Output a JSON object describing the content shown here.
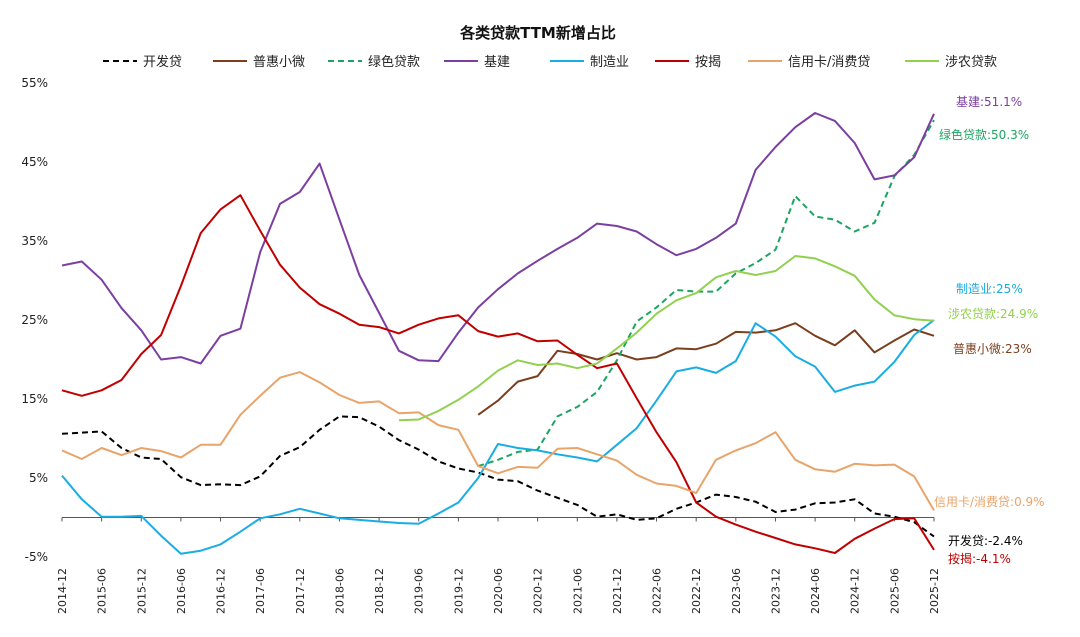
{
  "chart_data": {
    "type": "line",
    "title": "各类贷款TTM新增占比",
    "xlabel": "",
    "ylabel": "",
    "ylim": [
      -5,
      55
    ],
    "yticks": [
      -5,
      5,
      15,
      25,
      35,
      45,
      55
    ],
    "ytick_labels": [
      "-5%",
      "5%",
      "15%",
      "25%",
      "35%",
      "45%",
      "55%"
    ],
    "x_start": "2014-12",
    "x_end": "2025-12",
    "xticks": [
      "2014-12",
      "2015-06",
      "2015-12",
      "2016-06",
      "2016-12",
      "2017-06",
      "2017-12",
      "2018-06",
      "2018-12",
      "2019-06",
      "2019-12",
      "2020-06",
      "2020-12",
      "2021-06",
      "2021-12",
      "2022-06",
      "2022-12",
      "2023-06",
      "2023-12",
      "2024-06",
      "2024-12",
      "2025-06",
      "2025-12"
    ],
    "grid": false,
    "legend_position": "top",
    "series": [
      {
        "name": "开发贷",
        "color": "#000000",
        "dash": true,
        "x": [
          "2014-12",
          "2015-06",
          "2015-09",
          "2015-12",
          "2016-03",
          "2016-06",
          "2016-09",
          "2016-12",
          "2017-03",
          "2017-06",
          "2017-09",
          "2017-12",
          "2018-03",
          "2018-06",
          "2018-09",
          "2018-12",
          "2019-03",
          "2019-06",
          "2019-09",
          "2019-12",
          "2020-03",
          "2020-06",
          "2020-09",
          "2020-12",
          "2021-03",
          "2021-06",
          "2021-09",
          "2021-12",
          "2022-03",
          "2022-06",
          "2022-09",
          "2022-12",
          "2023-03",
          "2023-06",
          "2023-09",
          "2023-12",
          "2024-03",
          "2024-06",
          "2024-09",
          "2024-12",
          "2025-03",
          "2025-06",
          "2025-09",
          "2025-12"
        ],
        "values": [
          10.6,
          10.9,
          8.8,
          7.6,
          7.4,
          5.1,
          4.1,
          4.2,
          4.1,
          5.2,
          7.8,
          8.9,
          11.1,
          12.8,
          12.7,
          11.5,
          9.8,
          8.6,
          7.1,
          6.2,
          5.7,
          4.8,
          4.6,
          3.4,
          2.5,
          1.6,
          0.1,
          0.4,
          -0.3,
          -0.1,
          1.1,
          1.9,
          2.9,
          2.6,
          2.0,
          0.7,
          1.0,
          1.8,
          1.9,
          2.3,
          0.5,
          0.1,
          -0.6,
          -2.4
        ],
        "end_label": "开发贷:-2.4%"
      },
      {
        "name": "普惠小微",
        "color": "#7B3F1E",
        "dash": false,
        "x": [
          "2020-03",
          "2020-06",
          "2020-09",
          "2020-12",
          "2021-03",
          "2021-06",
          "2021-09",
          "2021-12",
          "2022-03",
          "2022-06",
          "2022-09",
          "2022-12",
          "2023-03",
          "2023-06",
          "2023-09",
          "2023-12",
          "2024-03",
          "2024-06",
          "2024-09",
          "2024-12",
          "2025-03",
          "2025-06",
          "2025-09",
          "2025-12"
        ],
        "values": [
          13.0,
          14.8,
          17.2,
          17.9,
          21.1,
          20.7,
          20.0,
          20.8,
          20.0,
          20.3,
          21.4,
          21.3,
          22.0,
          23.5,
          23.4,
          23.7,
          24.6,
          23.0,
          21.8,
          23.7,
          20.9,
          22.4,
          23.8,
          23.0
        ],
        "end_label": "普惠小微:23%"
      },
      {
        "name": "绿色贷款",
        "color": "#1DA462",
        "dash": true,
        "x": [
          "2020-03",
          "2020-06",
          "2020-09",
          "2020-12",
          "2021-03",
          "2021-06",
          "2021-09",
          "2021-12",
          "2022-03",
          "2022-06",
          "2022-09",
          "2022-12",
          "2023-03",
          "2023-06",
          "2023-09",
          "2023-12",
          "2024-03",
          "2024-06",
          "2024-09",
          "2024-12",
          "2025-03",
          "2025-06",
          "2025-09",
          "2025-12"
        ],
        "values": [
          6.5,
          7.3,
          8.3,
          8.6,
          12.8,
          14.0,
          15.9,
          19.9,
          24.8,
          26.6,
          28.8,
          28.6,
          28.6,
          30.9,
          32.2,
          33.9,
          40.7,
          38.1,
          37.7,
          36.2,
          37.3,
          43.2,
          45.9,
          50.3
        ],
        "end_label": "绿色贷款:50.3%"
      },
      {
        "name": "基建",
        "color": "#7B3FA1",
        "dash": false,
        "x": [
          "2014-12",
          "2015-03",
          "2015-06",
          "2015-09",
          "2015-12",
          "2016-03",
          "2016-06",
          "2016-09",
          "2016-12",
          "2017-03",
          "2017-06",
          "2017-09",
          "2017-12",
          "2018-03",
          "2018-06",
          "2018-09",
          "2018-12",
          "2019-03",
          "2019-06",
          "2019-09",
          "2019-12",
          "2020-03",
          "2020-06",
          "2020-09",
          "2020-12",
          "2021-03",
          "2021-06",
          "2021-09",
          "2021-12",
          "2022-03",
          "2022-06",
          "2022-09",
          "2022-12",
          "2023-03",
          "2023-06",
          "2023-09",
          "2023-12",
          "2024-03",
          "2024-06",
          "2024-09",
          "2024-12",
          "2025-03",
          "2025-06",
          "2025-09",
          "2025-12"
        ],
        "values": [
          31.9,
          32.4,
          30.1,
          26.5,
          23.7,
          20.0,
          20.3,
          19.5,
          23.0,
          23.9,
          33.6,
          39.7,
          41.2,
          44.8,
          37.7,
          30.7,
          25.9,
          21.1,
          19.9,
          19.8,
          23.4,
          26.6,
          28.9,
          30.9,
          32.5,
          34.0,
          35.4,
          37.2,
          36.9,
          36.2,
          34.6,
          33.2,
          34.0,
          35.4,
          37.2,
          44.0,
          46.9,
          49.4,
          51.2,
          50.2,
          47.4,
          42.8,
          43.3,
          45.6,
          51.1
        ],
        "end_label": "基建:51.1%"
      },
      {
        "name": "制造业",
        "color": "#1AADE3",
        "dash": false,
        "x": [
          "2014-12",
          "2015-03",
          "2015-06",
          "2015-09",
          "2015-12",
          "2016-03",
          "2016-06",
          "2016-09",
          "2016-12",
          "2017-03",
          "2017-06",
          "2017-09",
          "2017-12",
          "2018-03",
          "2018-06",
          "2018-09",
          "2018-12",
          "2019-03",
          "2019-06",
          "2019-09",
          "2019-12",
          "2020-03",
          "2020-06",
          "2020-09",
          "2020-12",
          "2021-03",
          "2021-06",
          "2021-09",
          "2021-12",
          "2022-03",
          "2022-06",
          "2022-09",
          "2022-12",
          "2023-03",
          "2023-06",
          "2023-09",
          "2023-12",
          "2024-03",
          "2024-06",
          "2024-09",
          "2024-12",
          "2025-03",
          "2025-06",
          "2025-09",
          "2025-12"
        ],
        "values": [
          5.3,
          2.3,
          0.1,
          0.1,
          0.2,
          -2.3,
          -4.6,
          -4.2,
          -3.4,
          -1.8,
          -0.1,
          0.4,
          1.1,
          0.5,
          -0.1,
          -0.3,
          -0.5,
          -0.7,
          -0.8,
          0.5,
          1.9,
          5.0,
          9.3,
          8.8,
          8.5,
          8.0,
          7.6,
          7.1,
          9.2,
          11.3,
          14.8,
          18.5,
          19.0,
          18.3,
          19.8,
          24.6,
          22.9,
          20.4,
          19.1,
          15.9,
          16.7,
          17.2,
          19.7,
          23.1,
          25.0
        ],
        "end_label": "制造业:25%"
      },
      {
        "name": "按揭",
        "color": "#C00000",
        "dash": false,
        "x": [
          "2014-12",
          "2015-03",
          "2015-06",
          "2015-09",
          "2015-12",
          "2016-03",
          "2016-06",
          "2016-09",
          "2016-12",
          "2017-03",
          "2017-06",
          "2017-09",
          "2017-12",
          "2018-03",
          "2018-06",
          "2018-09",
          "2018-12",
          "2019-03",
          "2019-06",
          "2019-09",
          "2019-12",
          "2020-03",
          "2020-06",
          "2020-09",
          "2020-12",
          "2021-03",
          "2021-06",
          "2021-09",
          "2021-12",
          "2022-03",
          "2022-06",
          "2022-09",
          "2022-12",
          "2023-03",
          "2023-06",
          "2023-09",
          "2023-12",
          "2024-03",
          "2024-06",
          "2024-09",
          "2024-12",
          "2025-03",
          "2025-06",
          "2025-09",
          "2025-12"
        ],
        "values": [
          16.1,
          15.4,
          16.1,
          17.4,
          20.7,
          23.1,
          29.3,
          36.0,
          39.0,
          40.8,
          36.3,
          32.0,
          29.1,
          27.0,
          25.8,
          24.4,
          24.1,
          23.3,
          24.4,
          25.2,
          25.6,
          23.6,
          22.9,
          23.3,
          22.3,
          22.4,
          20.6,
          18.9,
          19.5,
          15.1,
          10.8,
          7.0,
          1.9,
          0.1,
          -0.9,
          -1.8,
          -2.6,
          -3.4,
          -3.9,
          -4.5,
          -2.7,
          -1.4,
          -0.2,
          -0.1,
          -4.1
        ],
        "end_label": "按揭:-4.1%"
      },
      {
        "name": "信用卡/消费贷",
        "color": "#E8A46A",
        "dash": false,
        "x": [
          "2014-12",
          "2015-03",
          "2015-06",
          "2015-09",
          "2015-12",
          "2016-03",
          "2016-06",
          "2016-09",
          "2016-12",
          "2017-03",
          "2017-06",
          "2017-09",
          "2017-12",
          "2018-03",
          "2018-06",
          "2018-09",
          "2018-12",
          "2019-03",
          "2019-06",
          "2019-09",
          "2019-12",
          "2020-03",
          "2020-06",
          "2020-09",
          "2020-12",
          "2021-03",
          "2021-06",
          "2021-09",
          "2021-12",
          "2022-03",
          "2022-06",
          "2022-09",
          "2022-12",
          "2023-03",
          "2023-06",
          "2023-09",
          "2023-12",
          "2024-03",
          "2024-06",
          "2024-09",
          "2024-12",
          "2025-03",
          "2025-06",
          "2025-09",
          "2025-12"
        ],
        "values": [
          8.5,
          7.4,
          8.8,
          7.9,
          8.8,
          8.4,
          7.6,
          9.2,
          9.2,
          13.0,
          15.4,
          17.7,
          18.4,
          17.1,
          15.5,
          14.5,
          14.7,
          13.2,
          13.3,
          11.7,
          11.1,
          6.5,
          5.6,
          6.4,
          6.3,
          8.7,
          8.8,
          8.0,
          7.2,
          5.4,
          4.3,
          4.0,
          3.1,
          7.3,
          8.5,
          9.4,
          10.8,
          7.3,
          6.1,
          5.8,
          6.8,
          6.6,
          6.7,
          5.2,
          0.9
        ],
        "end_label": "信用卡/消费贷:0.9%"
      },
      {
        "name": "涉农贷款",
        "color": "#92D050",
        "dash": false,
        "x": [
          "2019-03",
          "2019-06",
          "2019-09",
          "2019-12",
          "2020-03",
          "2020-06",
          "2020-09",
          "2020-12",
          "2021-03",
          "2021-06",
          "2021-09",
          "2021-12",
          "2022-03",
          "2022-06",
          "2022-09",
          "2022-12",
          "2023-03",
          "2023-06",
          "2023-09",
          "2023-12",
          "2024-03",
          "2024-06",
          "2024-09",
          "2024-12",
          "2025-03",
          "2025-06",
          "2025-09",
          "2025-12"
        ],
        "values": [
          12.3,
          12.4,
          13.5,
          14.9,
          16.6,
          18.6,
          19.9,
          19.3,
          19.5,
          18.9,
          19.5,
          21.4,
          23.4,
          25.8,
          27.5,
          28.4,
          30.4,
          31.2,
          30.7,
          31.2,
          33.1,
          32.8,
          31.8,
          30.6,
          27.6,
          25.6,
          25.1,
          24.9
        ],
        "end_label": "涉农贷款:24.9%"
      }
    ]
  }
}
